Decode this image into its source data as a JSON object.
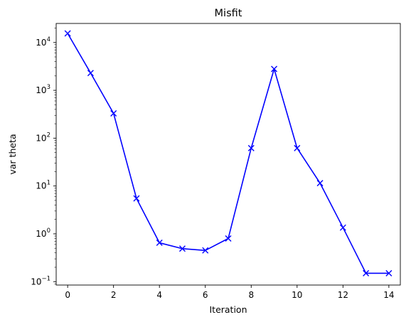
{
  "chart_data": {
    "type": "line",
    "title": "Misfit",
    "xlabel": "Iteration",
    "ylabel": "var theta",
    "yscale": "log",
    "grid": false,
    "marker": "x",
    "line_color": "#0000ff",
    "xlim": [
      -0.5,
      14.5
    ],
    "ylim": [
      0.085,
      25000
    ],
    "x_ticks": [
      0,
      2,
      4,
      6,
      8,
      10,
      12,
      14
    ],
    "y_ticks": [
      {
        "base": "10",
        "exp": "−1",
        "value": 0.1
      },
      {
        "base": "10",
        "exp": "0",
        "value": 1
      },
      {
        "base": "10",
        "exp": "1",
        "value": 10
      },
      {
        "base": "10",
        "exp": "2",
        "value": 100
      },
      {
        "base": "10",
        "exp": "3",
        "value": 1000
      },
      {
        "base": "10",
        "exp": "4",
        "value": 10000
      }
    ],
    "series": [
      {
        "x": [
          0,
          1,
          2,
          3,
          4,
          5,
          6,
          7,
          8,
          9,
          10,
          11,
          12,
          13,
          14
        ],
        "values": [
          15500,
          2300,
          330,
          5.5,
          0.65,
          0.49,
          0.45,
          0.8,
          62,
          2800,
          62,
          11.5,
          1.35,
          0.15,
          0.15
        ]
      }
    ]
  }
}
